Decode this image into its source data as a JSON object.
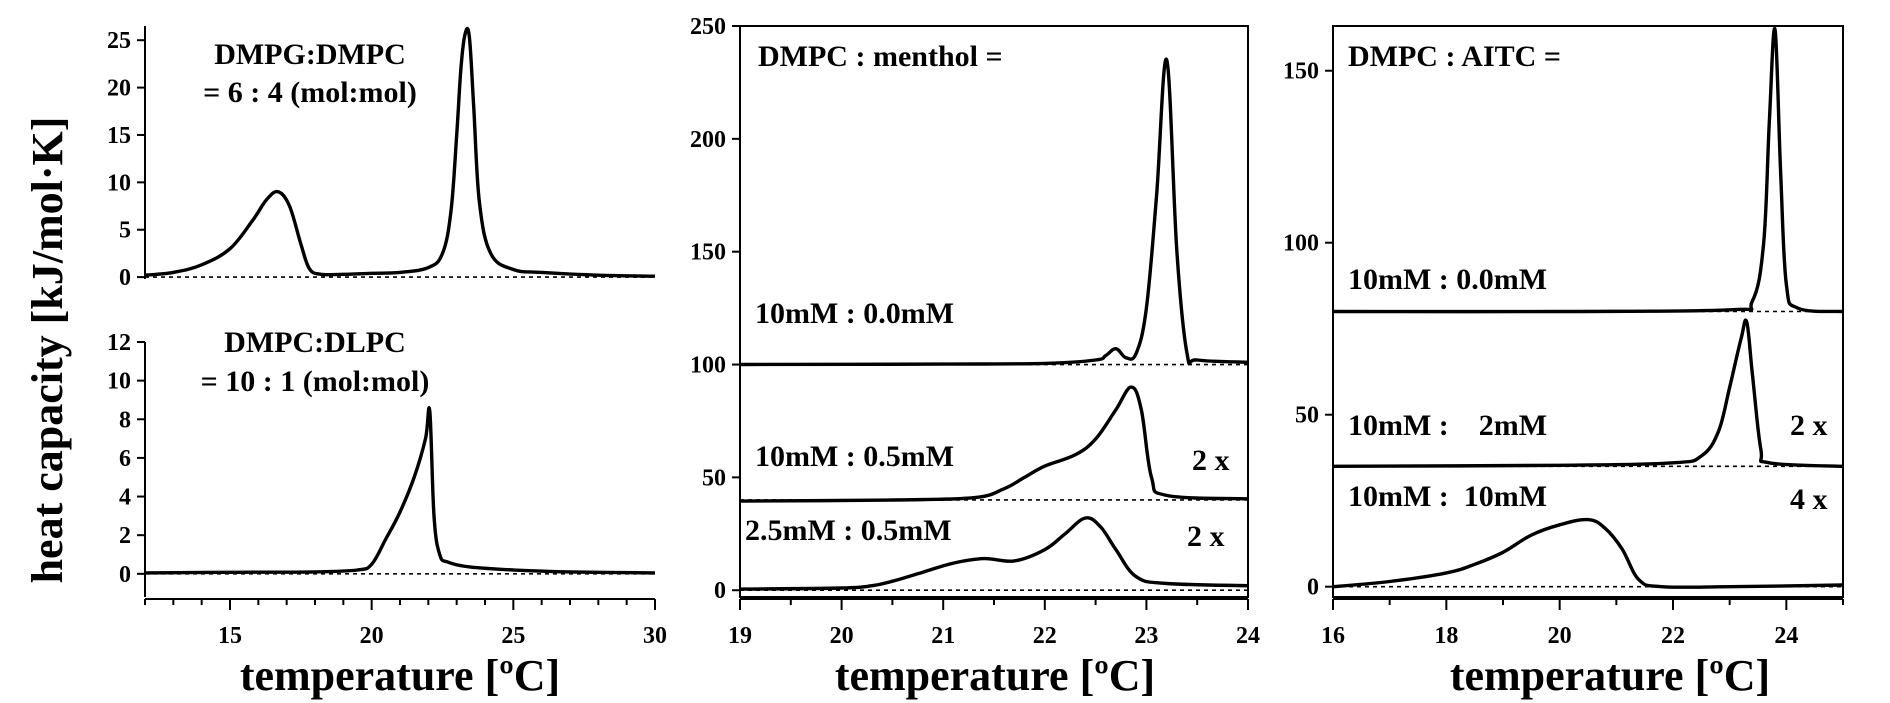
{
  "figure": {
    "ylabel": "heat capacity [kJ/mol·K]"
  },
  "chart_data": [
    {
      "id": "a-top",
      "type": "line",
      "title": "DMPG:DMPC",
      "subtitle": "= 6 : 4 (mol:mol)",
      "xlim": [
        12,
        30
      ],
      "ylim": [
        -0.2,
        26.5
      ],
      "yticks": [
        0,
        5,
        10,
        15,
        20,
        25
      ],
      "yticklabels": [
        "0",
        "5",
        "10",
        "15",
        "20",
        "25"
      ],
      "series": [
        {
          "name": "DMPG:DMPC 6:4",
          "baseline": 0,
          "x": [
            12,
            13,
            14,
            15,
            15.8,
            16.3,
            16.7,
            17.1,
            17.5,
            17.8,
            18.2,
            19,
            20,
            21,
            22,
            22.5,
            22.8,
            23.0,
            23.15,
            23.3,
            23.45,
            23.6,
            23.8,
            24.2,
            25,
            26,
            28,
            30
          ],
          "y": [
            0.2,
            0.5,
            1.3,
            3.0,
            6.0,
            8.2,
            9.0,
            7.5,
            3.5,
            0.9,
            0.3,
            0.3,
            0.4,
            0.5,
            1.0,
            2.5,
            7.0,
            15.0,
            22.0,
            25.7,
            25.3,
            18.0,
            8.0,
            2.5,
            0.8,
            0.5,
            0.2,
            0.1
          ]
        }
      ]
    },
    {
      "id": "a-bottom",
      "type": "line",
      "title": "DMPC:DLPC",
      "subtitle": "= 10 : 1 (mol:mol)",
      "xlim": [
        12,
        30
      ],
      "ylim": [
        -1.2,
        12
      ],
      "xlabel": "temperature [ºC]",
      "xticks": [
        15,
        20,
        25,
        30
      ],
      "xticklabels": [
        "15",
        "20",
        "25",
        "30"
      ],
      "xminor": [
        12,
        13,
        14,
        16,
        17,
        18,
        19,
        21,
        22,
        23,
        24,
        26,
        27,
        28,
        29
      ],
      "yticks": [
        0,
        2,
        4,
        6,
        8,
        10,
        12
      ],
      "yticklabels": [
        "0",
        "2",
        "4",
        "6",
        "8",
        "10",
        "12"
      ],
      "series": [
        {
          "name": "DMPC:DLPC 10:1",
          "baseline": 0,
          "x": [
            12,
            15,
            18,
            19.5,
            20.0,
            20.5,
            21.0,
            21.5,
            21.9,
            22.05,
            22.2,
            22.4,
            22.7,
            23.5,
            25,
            27,
            30
          ],
          "y": [
            0.05,
            0.08,
            0.1,
            0.2,
            0.5,
            1.8,
            3.2,
            5.0,
            7.0,
            8.4,
            3.0,
            1.0,
            0.6,
            0.35,
            0.2,
            0.1,
            0.05
          ]
        }
      ]
    },
    {
      "id": "b",
      "type": "line",
      "title": "DMPC : menthol =",
      "xlim": [
        19,
        24
      ],
      "ylim": [
        -3,
        250
      ],
      "xlabel": "temperature [ºC]",
      "xticks": [
        19,
        20,
        21,
        22,
        23,
        24
      ],
      "xticklabels": [
        "19",
        "20",
        "21",
        "22",
        "23",
        "24"
      ],
      "xminor": [
        19.5,
        20.5,
        21.5,
        22.5,
        23.5
      ],
      "yticks": [
        0,
        50,
        100,
        150,
        200,
        250
      ],
      "yticklabels": [
        "0",
        "50",
        "100",
        "150",
        "200",
        "250"
      ],
      "series": [
        {
          "name": "10mM : 0.0mM",
          "label": "10mM : 0.0mM",
          "scale_label": "",
          "baseline": 100,
          "x": [
            19,
            21,
            22,
            22.5,
            22.6,
            22.7,
            22.8,
            22.9,
            23.0,
            23.1,
            23.2,
            23.3,
            23.4,
            23.5,
            24
          ],
          "y": [
            100,
            100.2,
            100.5,
            102,
            104,
            107,
            103,
            105,
            125,
            175,
            235,
            150,
            105,
            102,
            101
          ]
        },
        {
          "name": "10mM : 0.5mM",
          "label": "10mM : 0.5mM",
          "scale_label": "2 x",
          "baseline": 40,
          "x": [
            19,
            20.5,
            21.3,
            21.6,
            21.8,
            22.0,
            22.3,
            22.5,
            22.7,
            22.85,
            22.95,
            23.05,
            23.2,
            24
          ],
          "y": [
            39.5,
            40,
            41,
            45,
            50,
            55,
            60,
            67,
            80,
            90,
            80,
            50,
            42,
            40.5
          ]
        },
        {
          "name": "2.5mM : 0.5mM",
          "label": "2.5mM : 0.5mM",
          "scale_label": "2 x",
          "baseline": 0,
          "x": [
            19,
            20,
            20.3,
            20.5,
            20.8,
            21.1,
            21.4,
            21.7,
            22.0,
            22.2,
            22.4,
            22.55,
            22.7,
            22.9,
            23.2,
            24
          ],
          "y": [
            0.5,
            1,
            2,
            4,
            8,
            12,
            14,
            13,
            18,
            25,
            32,
            28,
            18,
            6,
            3,
            2
          ]
        }
      ]
    },
    {
      "id": "c",
      "type": "line",
      "title": "DMPC : AITC =",
      "xlim": [
        16,
        25
      ],
      "ylim": [
        -3,
        163
      ],
      "xlabel": "temperature [ºC]",
      "xticks": [
        16,
        18,
        20,
        22,
        24
      ],
      "xticklabels": [
        "16",
        "18",
        "20",
        "22",
        "24"
      ],
      "xminor": [
        17,
        19,
        21,
        23,
        25
      ],
      "yticks": [
        0,
        50,
        100,
        150
      ],
      "yticklabels": [
        "0",
        "50",
        "100",
        "150"
      ],
      "series": [
        {
          "name": "10mM : 0.0mM",
          "label": "10mM : 0.0mM",
          "scale_label": "",
          "baseline": 80,
          "x": [
            16,
            20,
            23,
            23.4,
            23.6,
            23.7,
            23.8,
            23.9,
            24.0,
            24.2,
            25
          ],
          "y": [
            80,
            80,
            80.5,
            83,
            100,
            135,
            162,
            120,
            88,
            81,
            80
          ]
        },
        {
          "name": "10mM :    2mM",
          "label": "10mM :    2mM",
          "scale_label": "2 x",
          "baseline": 35,
          "x": [
            16,
            20,
            22,
            22.5,
            22.8,
            23.0,
            23.2,
            23.3,
            23.4,
            23.55,
            23.7,
            25
          ],
          "y": [
            35,
            35.3,
            36,
            38,
            45,
            58,
            72,
            77,
            62,
            40,
            36,
            35
          ]
        },
        {
          "name": "10mM :  10mM",
          "label": "10mM :  10mM",
          "scale_label": "4 x",
          "baseline": 0,
          "x": [
            16,
            17,
            18,
            18.5,
            19,
            19.5,
            20,
            20.5,
            20.8,
            21.1,
            21.4,
            21.8,
            23,
            25
          ],
          "y": [
            0,
            1.5,
            4,
            6.5,
            10,
            15,
            18,
            19.5,
            17,
            11,
            2,
            0,
            0,
            0.5
          ]
        }
      ]
    }
  ]
}
